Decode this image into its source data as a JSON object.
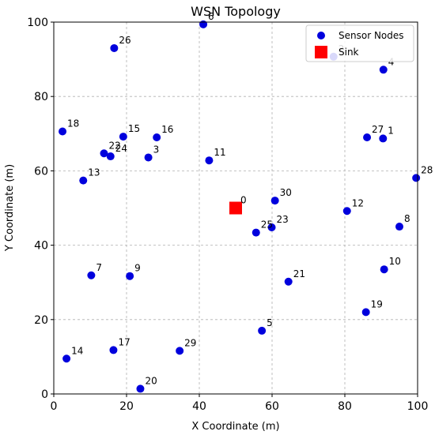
{
  "chart_data": {
    "type": "scatter",
    "title": "WSN Topology",
    "xlabel": "X Coordinate (m)",
    "ylabel": "Y Coordinate (m)",
    "xlim": [
      0,
      100
    ],
    "ylim": [
      0,
      100
    ],
    "xticks": [
      0,
      20,
      40,
      60,
      80,
      100
    ],
    "yticks": [
      0,
      20,
      40,
      60,
      80,
      100
    ],
    "grid": true,
    "legend_position": "top-right",
    "colors": {
      "sensor": "#0000dd",
      "sink": "#ff0000"
    },
    "series": [
      {
        "name": "Sensor Nodes",
        "marker": "circle",
        "points": [
          {
            "id": "1",
            "x": 90.5,
            "y": 68.7
          },
          {
            "id": "2",
            "x": 76.9,
            "y": 90.7
          },
          {
            "id": "3",
            "x": 26.0,
            "y": 63.6
          },
          {
            "id": "4",
            "x": 90.6,
            "y": 87.2
          },
          {
            "id": "5",
            "x": 57.2,
            "y": 17.0
          },
          {
            "id": "6",
            "x": 41.1,
            "y": 99.4
          },
          {
            "id": "7",
            "x": 10.3,
            "y": 31.9
          },
          {
            "id": "8",
            "x": 95.0,
            "y": 45.0
          },
          {
            "id": "9",
            "x": 20.9,
            "y": 31.7
          },
          {
            "id": "10",
            "x": 90.8,
            "y": 33.5
          },
          {
            "id": "11",
            "x": 42.7,
            "y": 62.8
          },
          {
            "id": "12",
            "x": 80.6,
            "y": 49.2
          },
          {
            "id": "13",
            "x": 8.1,
            "y": 57.4
          },
          {
            "id": "14",
            "x": 3.5,
            "y": 9.5
          },
          {
            "id": "15",
            "x": 19.1,
            "y": 69.2
          },
          {
            "id": "16",
            "x": 28.3,
            "y": 69.0
          },
          {
            "id": "17",
            "x": 16.4,
            "y": 11.8
          },
          {
            "id": "18",
            "x": 2.4,
            "y": 70.6
          },
          {
            "id": "19",
            "x": 85.8,
            "y": 22.0
          },
          {
            "id": "20",
            "x": 23.8,
            "y": 1.4
          },
          {
            "id": "21",
            "x": 64.5,
            "y": 30.2
          },
          {
            "id": "22",
            "x": 13.8,
            "y": 64.7
          },
          {
            "id": "23",
            "x": 59.9,
            "y": 44.8
          },
          {
            "id": "24",
            "x": 15.6,
            "y": 63.9
          },
          {
            "id": "25",
            "x": 55.6,
            "y": 43.4
          },
          {
            "id": "26",
            "x": 16.6,
            "y": 93.0
          },
          {
            "id": "27",
            "x": 86.1,
            "y": 69.0
          },
          {
            "id": "28",
            "x": 99.6,
            "y": 58.1
          },
          {
            "id": "29",
            "x": 34.6,
            "y": 11.6
          },
          {
            "id": "30",
            "x": 60.8,
            "y": 52.0
          }
        ]
      },
      {
        "name": "Sink",
        "marker": "square",
        "points": [
          {
            "id": "0",
            "x": 50.0,
            "y": 50.0
          }
        ]
      }
    ]
  }
}
